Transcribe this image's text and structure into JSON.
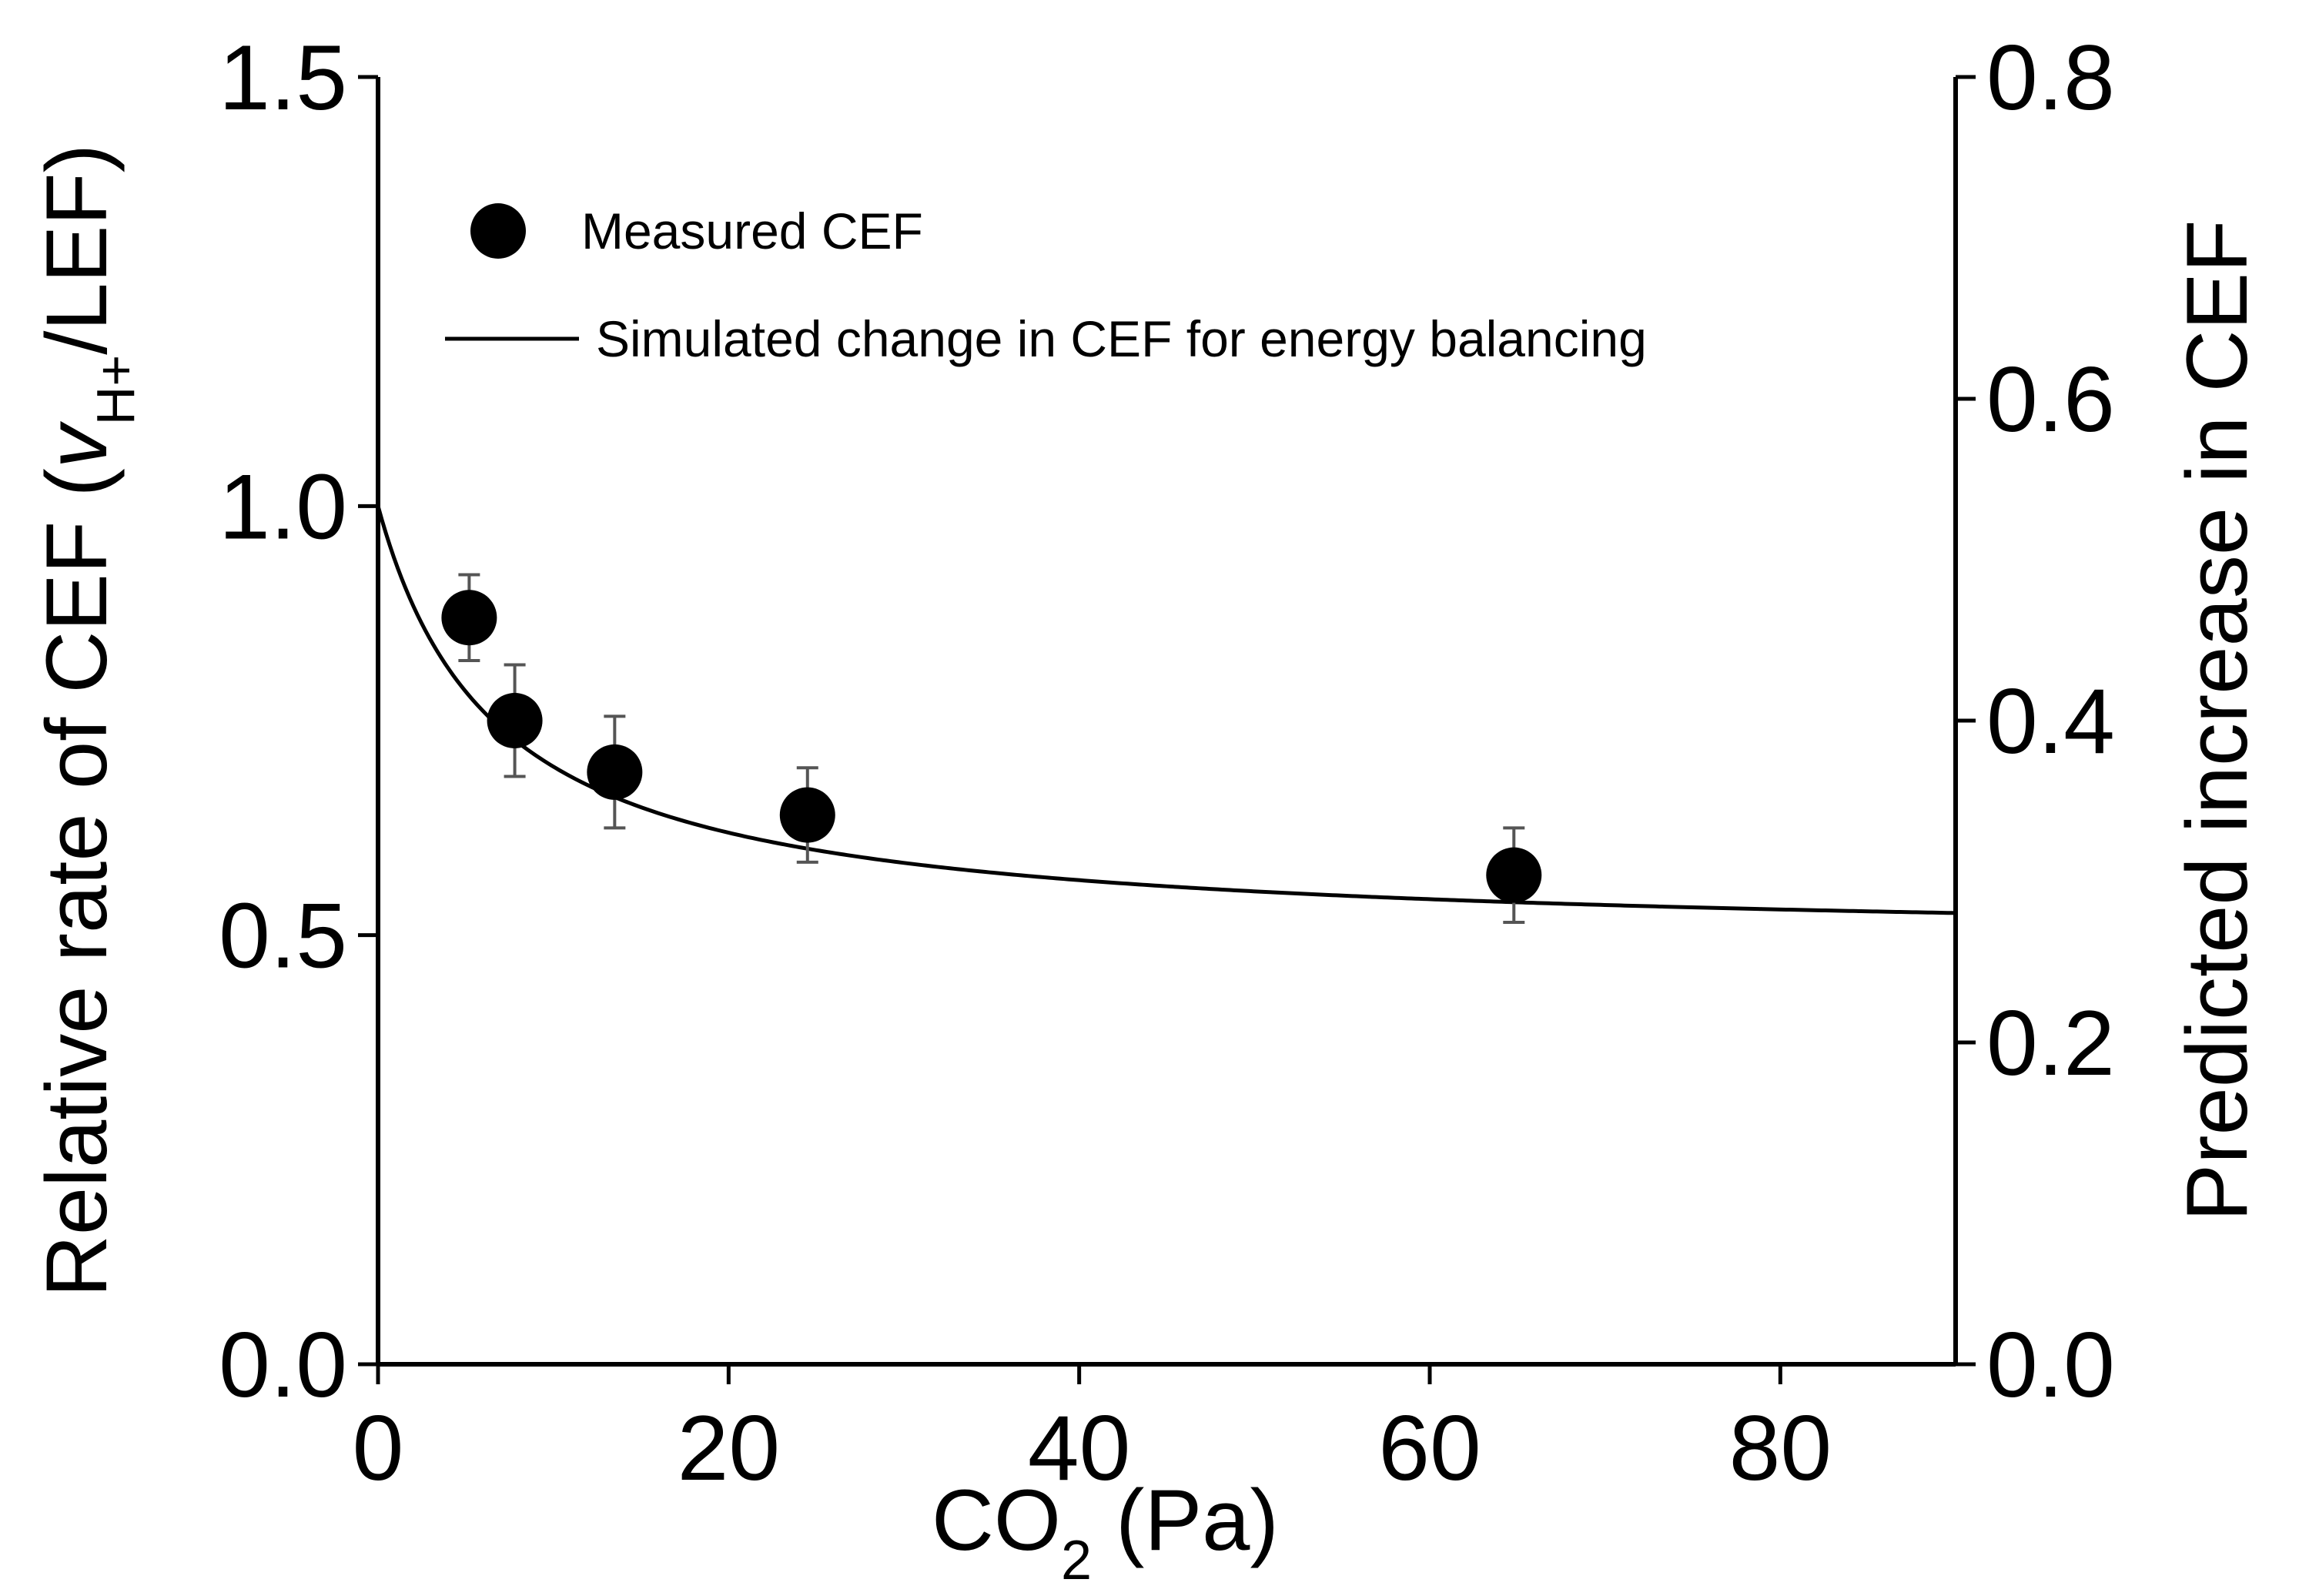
{
  "chart_data": {
    "type": "scatter",
    "title": "",
    "xlabel": {
      "main": "CO",
      "sub": "2",
      "unit": " (Pa)"
    },
    "ylabel": {
      "prefix": "Relative rate of CEF (",
      "italic": "v",
      "sub": "H+",
      "suffix": "/LEF)"
    },
    "y2label": "Predicted increase in CEF",
    "xlim": [
      0,
      90
    ],
    "ylim": [
      0,
      1.5
    ],
    "y2lim": [
      0,
      0.8
    ],
    "xticks": [
      0,
      20,
      40,
      60,
      80
    ],
    "xtick_labels": [
      "0",
      "20",
      "40",
      "60",
      "80"
    ],
    "yticks": [
      0.0,
      0.5,
      1.0,
      1.5
    ],
    "ytick_labels": [
      "0.0",
      "0.5",
      "1.0",
      "1.5"
    ],
    "y2ticks": [
      0.0,
      0.2,
      0.4,
      0.6,
      0.8
    ],
    "y2tick_labels": [
      "0.0",
      "0.2",
      "0.4",
      "0.6",
      "0.8"
    ],
    "legend_position": "top-left",
    "series": [
      {
        "name": "Measured CEF",
        "kind": "scatter",
        "x": [
          5.2,
          7.8,
          13.5,
          24.5,
          64.8
        ],
        "y": [
          0.87,
          0.75,
          0.69,
          0.64,
          0.57
        ],
        "yerr": [
          0.05,
          0.065,
          0.065,
          0.055,
          0.055
        ]
      },
      {
        "name": "Simulated change in CEF for energy balancing",
        "kind": "line",
        "axis": "y",
        "model": {
          "start": 1.0,
          "asymptote": 0.49,
          "half_saturation": 6.8
        },
        "x_range": [
          0,
          90
        ]
      }
    ]
  }
}
